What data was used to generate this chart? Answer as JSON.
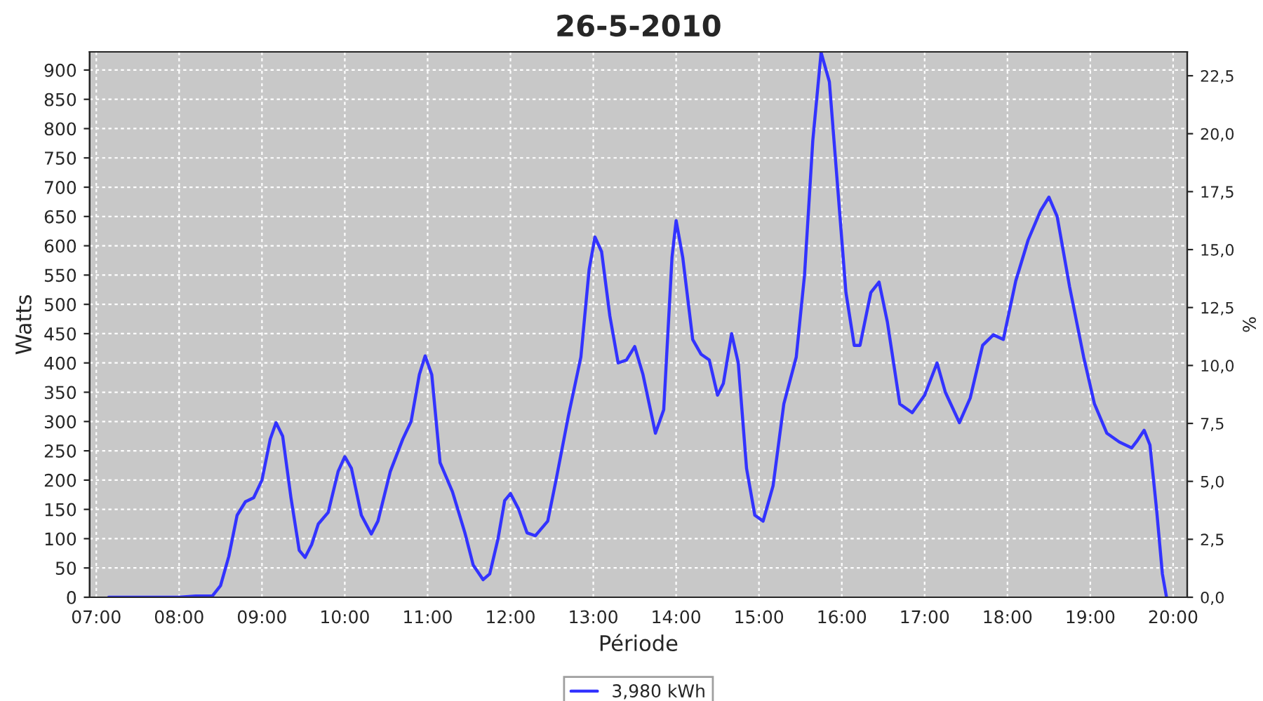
{
  "chart_data": {
    "type": "line",
    "title": "26-5-2010",
    "xlabel": "Période",
    "ylabel": "Watts",
    "y2label": "%",
    "xlim": [
      6.92,
      20.17
    ],
    "xticks": [
      {
        "value": 7,
        "label": "07:00"
      },
      {
        "value": 8,
        "label": "08:00"
      },
      {
        "value": 9,
        "label": "09:00"
      },
      {
        "value": 10,
        "label": "10:00"
      },
      {
        "value": 11,
        "label": "11:00"
      },
      {
        "value": 12,
        "label": "12:00"
      },
      {
        "value": 13,
        "label": "13:00"
      },
      {
        "value": 14,
        "label": "14:00"
      },
      {
        "value": 15,
        "label": "15:00"
      },
      {
        "value": 16,
        "label": "16:00"
      },
      {
        "value": 17,
        "label": "17:00"
      },
      {
        "value": 18,
        "label": "18:00"
      },
      {
        "value": 19,
        "label": "19:00"
      },
      {
        "value": 20,
        "label": "20:00"
      }
    ],
    "ylim": [
      0,
      931
    ],
    "yticks": [
      0,
      50,
      100,
      150,
      200,
      250,
      300,
      350,
      400,
      450,
      500,
      550,
      600,
      650,
      700,
      750,
      800,
      850,
      900
    ],
    "y2lim": [
      0,
      23.53
    ],
    "y2ticks": [
      {
        "value": 0,
        "label": "0,0"
      },
      {
        "value": 2.5,
        "label": "2,5"
      },
      {
        "value": 5,
        "label": "5,0"
      },
      {
        "value": 7.5,
        "label": "7,5"
      },
      {
        "value": 10,
        "label": "10,0"
      },
      {
        "value": 12.5,
        "label": "12,5"
      },
      {
        "value": 15,
        "label": "15,0"
      },
      {
        "value": 17.5,
        "label": "17,5"
      },
      {
        "value": 20,
        "label": "20,0"
      },
      {
        "value": 22.5,
        "label": "22,5"
      }
    ],
    "grid": true,
    "legend": "bottom",
    "marker": "none",
    "line_style": "solid",
    "series": [
      {
        "name": "3,980 kWh",
        "color": "#3333ff",
        "x": [
          7.15,
          8.0,
          8.2,
          8.4,
          8.5,
          8.6,
          8.7,
          8.8,
          8.9,
          9.0,
          9.1,
          9.17,
          9.25,
          9.35,
          9.45,
          9.52,
          9.6,
          9.68,
          9.8,
          9.92,
          10.0,
          10.08,
          10.2,
          10.32,
          10.4,
          10.55,
          10.7,
          10.8,
          10.9,
          10.97,
          11.05,
          11.15,
          11.3,
          11.45,
          11.55,
          11.67,
          11.75,
          11.85,
          11.93,
          12.0,
          12.1,
          12.2,
          12.3,
          12.45,
          12.55,
          12.7,
          12.85,
          12.95,
          13.02,
          13.1,
          13.2,
          13.3,
          13.4,
          13.5,
          13.6,
          13.75,
          13.85,
          13.95,
          14.0,
          14.08,
          14.2,
          14.3,
          14.4,
          14.5,
          14.57,
          14.67,
          14.75,
          14.85,
          14.95,
          15.05,
          15.17,
          15.3,
          15.45,
          15.55,
          15.65,
          15.75,
          15.85,
          15.95,
          16.05,
          16.15,
          16.22,
          16.35,
          16.45,
          16.55,
          16.7,
          16.85,
          17.0,
          17.15,
          17.25,
          17.42,
          17.55,
          17.7,
          17.83,
          17.95,
          18.1,
          18.25,
          18.4,
          18.5,
          18.6,
          18.75,
          18.92,
          19.05,
          19.2,
          19.35,
          19.5,
          19.57,
          19.65,
          19.72,
          19.8,
          19.87,
          19.92
        ],
        "values": [
          0,
          0,
          2,
          2,
          20,
          70,
          140,
          163,
          170,
          200,
          270,
          298,
          275,
          170,
          80,
          68,
          90,
          125,
          145,
          215,
          240,
          220,
          140,
          108,
          130,
          215,
          270,
          300,
          380,
          412,
          380,
          230,
          180,
          110,
          55,
          30,
          40,
          100,
          165,
          177,
          150,
          110,
          105,
          130,
          200,
          310,
          410,
          560,
          615,
          590,
          480,
          400,
          405,
          428,
          380,
          280,
          320,
          580,
          643,
          580,
          440,
          415,
          405,
          345,
          365,
          450,
          400,
          220,
          140,
          130,
          190,
          330,
          410,
          550,
          780,
          930,
          880,
          700,
          520,
          430,
          430,
          520,
          538,
          470,
          330,
          315,
          345,
          400,
          350,
          298,
          340,
          430,
          448,
          440,
          540,
          610,
          660,
          683,
          650,
          530,
          410,
          330,
          280,
          265,
          255,
          268,
          285,
          260,
          150,
          40,
          0
        ]
      }
    ]
  }
}
